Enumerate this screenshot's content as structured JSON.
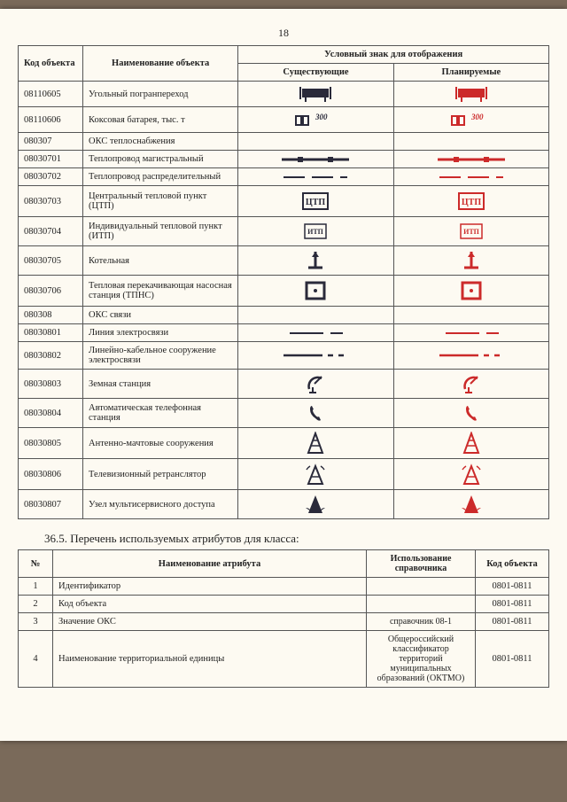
{
  "page_number": "18",
  "colors": {
    "existing": "#2a2a3a",
    "planned": "#cc2a2a",
    "paper": "#fdfaf2",
    "border": "#555"
  },
  "table1": {
    "head": {
      "code": "Код объекта",
      "name": "Наименование объекта",
      "symbol_group": "Условный знак для отображения",
      "existing": "Существующие",
      "planned": "Планируемые"
    },
    "rows": [
      {
        "code": "08110605",
        "name": "Угольный погранпереход",
        "sym": "border_cross"
      },
      {
        "code": "08110606",
        "name": "Коксовая батарея, тыс. т",
        "sym": "coke_battery"
      },
      {
        "code": "080307",
        "name": "ОКС теплоснабжения",
        "sym": ""
      },
      {
        "code": "08030701",
        "name": "Теплопровод магистральный",
        "sym": "pipe_main"
      },
      {
        "code": "08030702",
        "name": "Теплопровод распределительный",
        "sym": "pipe_dist"
      },
      {
        "code": "08030703",
        "name": "Центральный тепловой пункт (ЦТП)",
        "sym": "ctp"
      },
      {
        "code": "08030704",
        "name": "Индивидуальный тепловой пункт (ИТП)",
        "sym": "itp"
      },
      {
        "code": "08030705",
        "name": "Котельная",
        "sym": "boiler"
      },
      {
        "code": "08030706",
        "name": "Тепловая перекачивающая насосная станция (ТПНС)",
        "sym": "tpns"
      },
      {
        "code": "080308",
        "name": "ОКС связи",
        "sym": ""
      },
      {
        "code": "08030801",
        "name": "Линия электросвязи",
        "sym": "tel_line"
      },
      {
        "code": "08030802",
        "name": "Линейно-кабельное сооружение электросвязи",
        "sym": "cable_line"
      },
      {
        "code": "08030803",
        "name": "Земная станция",
        "sym": "dish"
      },
      {
        "code": "08030804",
        "name": "Автоматическая телефонная станция",
        "sym": "phone"
      },
      {
        "code": "08030805",
        "name": "Антенно-мачтовые сооружения",
        "sym": "tower"
      },
      {
        "code": "08030806",
        "name": "Телевизионный ретранслятор",
        "sym": "tv_tower"
      },
      {
        "code": "08030807",
        "name": "Узел мультисервисного доступа",
        "sym": "msan"
      }
    ]
  },
  "section_title": "36.5.   Перечень используемых атрибутов для класса:",
  "table2": {
    "head": {
      "num": "№",
      "name": "Наименование атрибута",
      "ref": "Использование справочника",
      "code": "Код объекта"
    },
    "rows": [
      {
        "n": "1",
        "name": "Идентификатор",
        "ref": "",
        "code": "0801-0811"
      },
      {
        "n": "2",
        "name": "Код объекта",
        "ref": "",
        "code": "0801-0811"
      },
      {
        "n": "3",
        "name": "Значение ОКС",
        "ref": "справочник 08-1",
        "code": "0801-0811"
      },
      {
        "n": "4",
        "name": "Наименование территориальной единицы",
        "ref": "Общероссийский классификатор территорий муниципальных образований (ОКТМО)",
        "code": "0801-0811"
      }
    ]
  }
}
